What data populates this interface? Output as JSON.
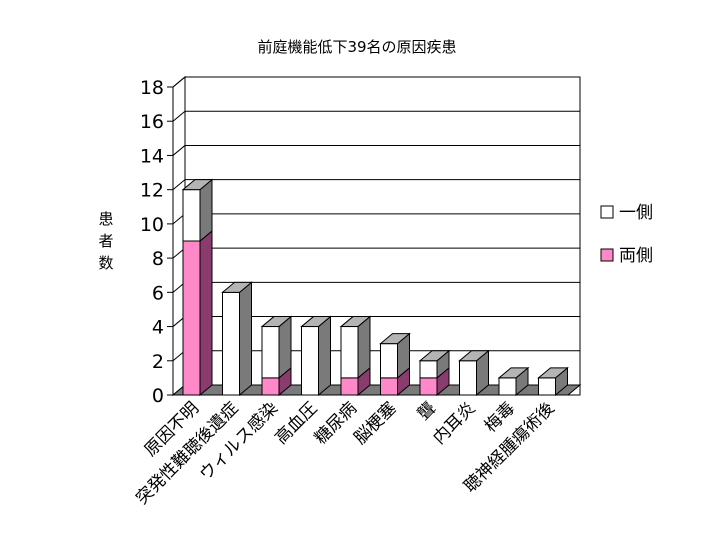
{
  "chart_data": {
    "type": "bar",
    "stacked": true,
    "three_d": true,
    "title": "前庭機能低下39名の原因疾患",
    "ylabel": "患者数",
    "xlabel": "",
    "ylim": [
      0,
      18
    ],
    "yticks": [
      0,
      2,
      4,
      6,
      8,
      10,
      12,
      14,
      16,
      18
    ],
    "grid": true,
    "legend_position": "right",
    "categories": [
      "原因不明",
      "突発性難聴後遺症",
      "ウィルス感染",
      "高血圧",
      "糖尿病",
      "脳梗塞",
      "聾",
      "内耳炎",
      "梅毒",
      "聴神経腫瘍術後"
    ],
    "series": [
      {
        "name": "両側",
        "color": "#ff88c8",
        "values": [
          9,
          0,
          1,
          0,
          1,
          1,
          1,
          0,
          0,
          0
        ]
      },
      {
        "name": "一側",
        "color": "#ffffff",
        "values": [
          3,
          6,
          3,
          4,
          3,
          2,
          1,
          2,
          1,
          1
        ]
      }
    ]
  },
  "colors": {
    "side_face": "#7a7a7a",
    "top_face": "#b4b4b4",
    "pink_side": "#8a3c6e",
    "pink_top": "#d88ab8",
    "floor": "#7a7a7a"
  }
}
